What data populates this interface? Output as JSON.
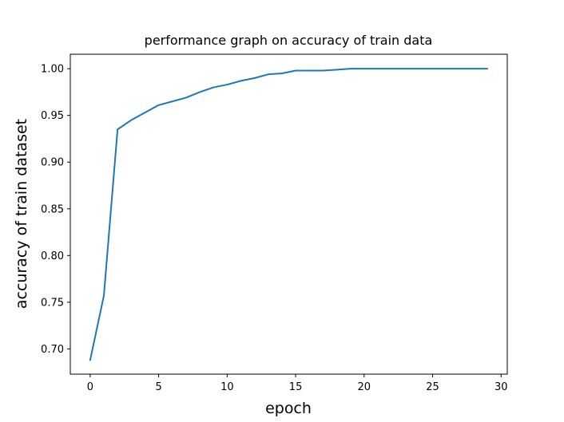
{
  "chart_data": {
    "type": "line",
    "title": "performance graph on accuracy of train data",
    "xlabel": "epoch",
    "ylabel": "accuracy of train dataset",
    "xlim": [
      -1.45,
      30.45
    ],
    "ylim": [
      0.673,
      1.0155
    ],
    "xticks": [
      0,
      5,
      10,
      15,
      20,
      25,
      30
    ],
    "xtick_labels": [
      "0",
      "5",
      "10",
      "15",
      "20",
      "25",
      "30"
    ],
    "yticks": [
      0.7,
      0.75,
      0.8,
      0.85,
      0.9,
      0.95,
      1.0
    ],
    "ytick_labels": [
      "0.70",
      "0.75",
      "0.80",
      "0.85",
      "0.90",
      "0.95",
      "1.00"
    ],
    "grid": false,
    "series": [
      {
        "color": "#1f77b4",
        "x": [
          0,
          1,
          2,
          3,
          4,
          5,
          6,
          7,
          8,
          9,
          10,
          11,
          12,
          13,
          14,
          15,
          16,
          17,
          18,
          19,
          20,
          21,
          22,
          23,
          24,
          25,
          26,
          27,
          28,
          29
        ],
        "values": [
          0.688,
          0.757,
          0.935,
          0.945,
          0.953,
          0.961,
          0.965,
          0.969,
          0.975,
          0.98,
          0.983,
          0.987,
          0.99,
          0.994,
          0.995,
          0.998,
          0.998,
          0.998,
          0.999,
          1.0,
          1.0,
          1.0,
          1.0,
          1.0,
          1.0,
          1.0,
          1.0,
          1.0,
          1.0,
          1.0
        ]
      }
    ]
  }
}
